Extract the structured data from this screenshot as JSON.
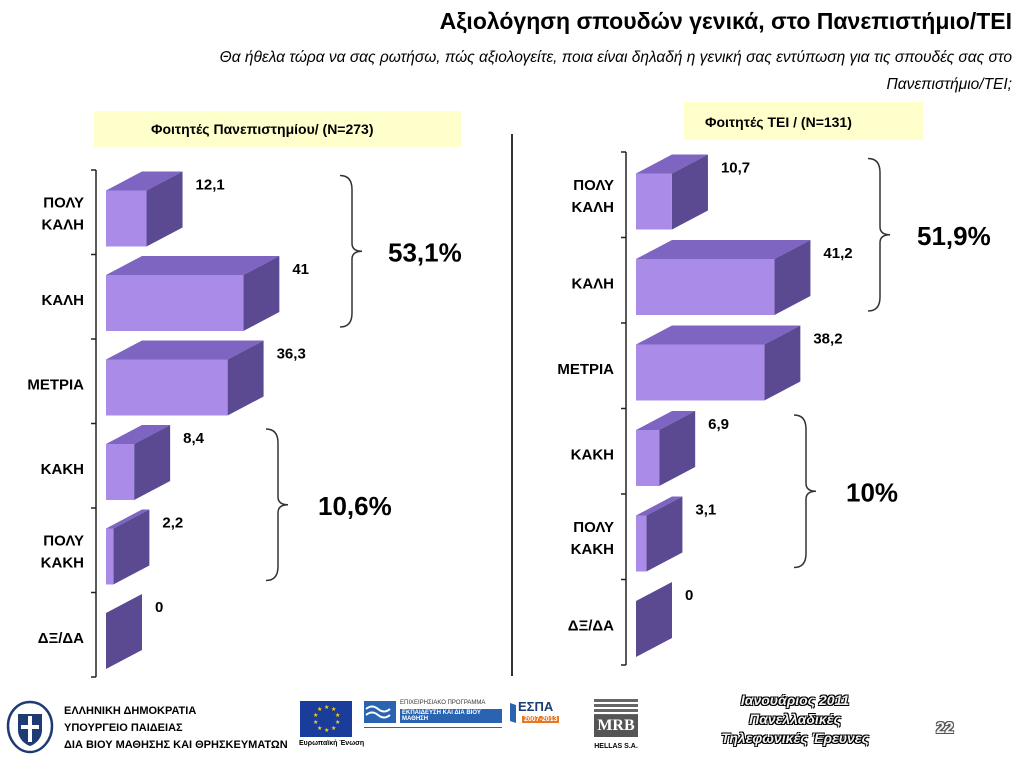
{
  "header": {
    "title": "Αξιολόγηση σπουδών γενικά, στο Πανεπιστήμιο/ΤΕΙ",
    "subtitle": "Θα ήθελα τώρα να σας ρωτήσω, πώς αξιολογείτε, ποια είναι δηλαδή η γενική σας εντύπωση για τις σπουδές σας στο Πανεπιστήμιο/ΤΕΙ;"
  },
  "chart_data": [
    {
      "type": "bar",
      "orientation": "horizontal",
      "title": "Φοιτητές Πανεπιστημίου/ (N=273)",
      "categories": [
        "ΠΟΛΥ ΚΑΛΗ",
        "ΚΑΛΗ",
        "ΜΕΤΡΙΑ",
        "ΚΑΚΗ",
        "ΠΟΛΥ ΚΑΚΗ",
        "ΔΞ/ΔΑ"
      ],
      "value_labels": [
        "12,1",
        "41",
        "36,3",
        "8,4",
        "2,2",
        "0"
      ],
      "values": [
        12.1,
        41,
        36.3,
        8.4,
        2.2,
        0
      ],
      "groups": [
        {
          "label": "53,1%",
          "from": 0,
          "to": 1
        },
        {
          "label": "10,6%",
          "from": 3,
          "to": 4
        }
      ],
      "colors": {
        "front": "#aa8ce8",
        "top": "#7e65c2",
        "side": "#5b4a91"
      }
    },
    {
      "type": "bar",
      "orientation": "horizontal",
      "title": "Φοιτητές ΤΕΙ / (N=131)",
      "categories": [
        "ΠΟΛΥ ΚΑΛΗ",
        "ΚΑΛΗ",
        "ΜΕΤΡΙΑ",
        "ΚΑΚΗ",
        "ΠΟΛΥ ΚΑΚΗ",
        "ΔΞ/ΔΑ"
      ],
      "value_labels": [
        "10,7",
        "41,2",
        "38,2",
        "6,9",
        "3,1",
        "0"
      ],
      "values": [
        10.7,
        41.2,
        38.2,
        6.9,
        3.1,
        0
      ],
      "groups": [
        {
          "label": "51,9%",
          "from": 0,
          "to": 1
        },
        {
          "label": "10%",
          "from": 3,
          "to": 4
        }
      ],
      "colors": {
        "front": "#aa8ce8",
        "top": "#7e65c2",
        "side": "#5b4a91"
      }
    }
  ],
  "footer": {
    "ministry_lines": [
      "ΕΛΛΗΝΙΚΗ ΔΗΜΟΚΡΑΤΙΑ",
      "ΥΠΟΥΡΓΕΙΟ ΠΑΙΔΕΙΑΣ",
      "ΔΙΑ ΒΙΟΥ ΜΑΘΗΣΗΣ ΚΑΙ ΘΡΗΣΚΕΥΜΑΤΩΝ"
    ],
    "eu_caption": "Ευρωπαϊκή Ένωση",
    "program_title": "ΕΠΙΧΕΙΡΗΣΙΑΚΟ ΠΡΟΓΡΑΜΜΑ",
    "program_name": "ΕΚΠΑΙΔΕΥΣΗ ΚΑΙ ΔΙΑ ΒΙΟΥ ΜΑΘΗΣΗ",
    "espa_name": "ΕΣΠΑ",
    "espa_years": "2007-2013",
    "mrb_name": "MRB",
    "mrb_caption": "HELLAS S.A.",
    "date_lines": [
      "Ιανουάριος 2011",
      "Πανελλαδικές",
      "Τηλεφωνικές Έρευνες"
    ],
    "page_number": "22"
  }
}
